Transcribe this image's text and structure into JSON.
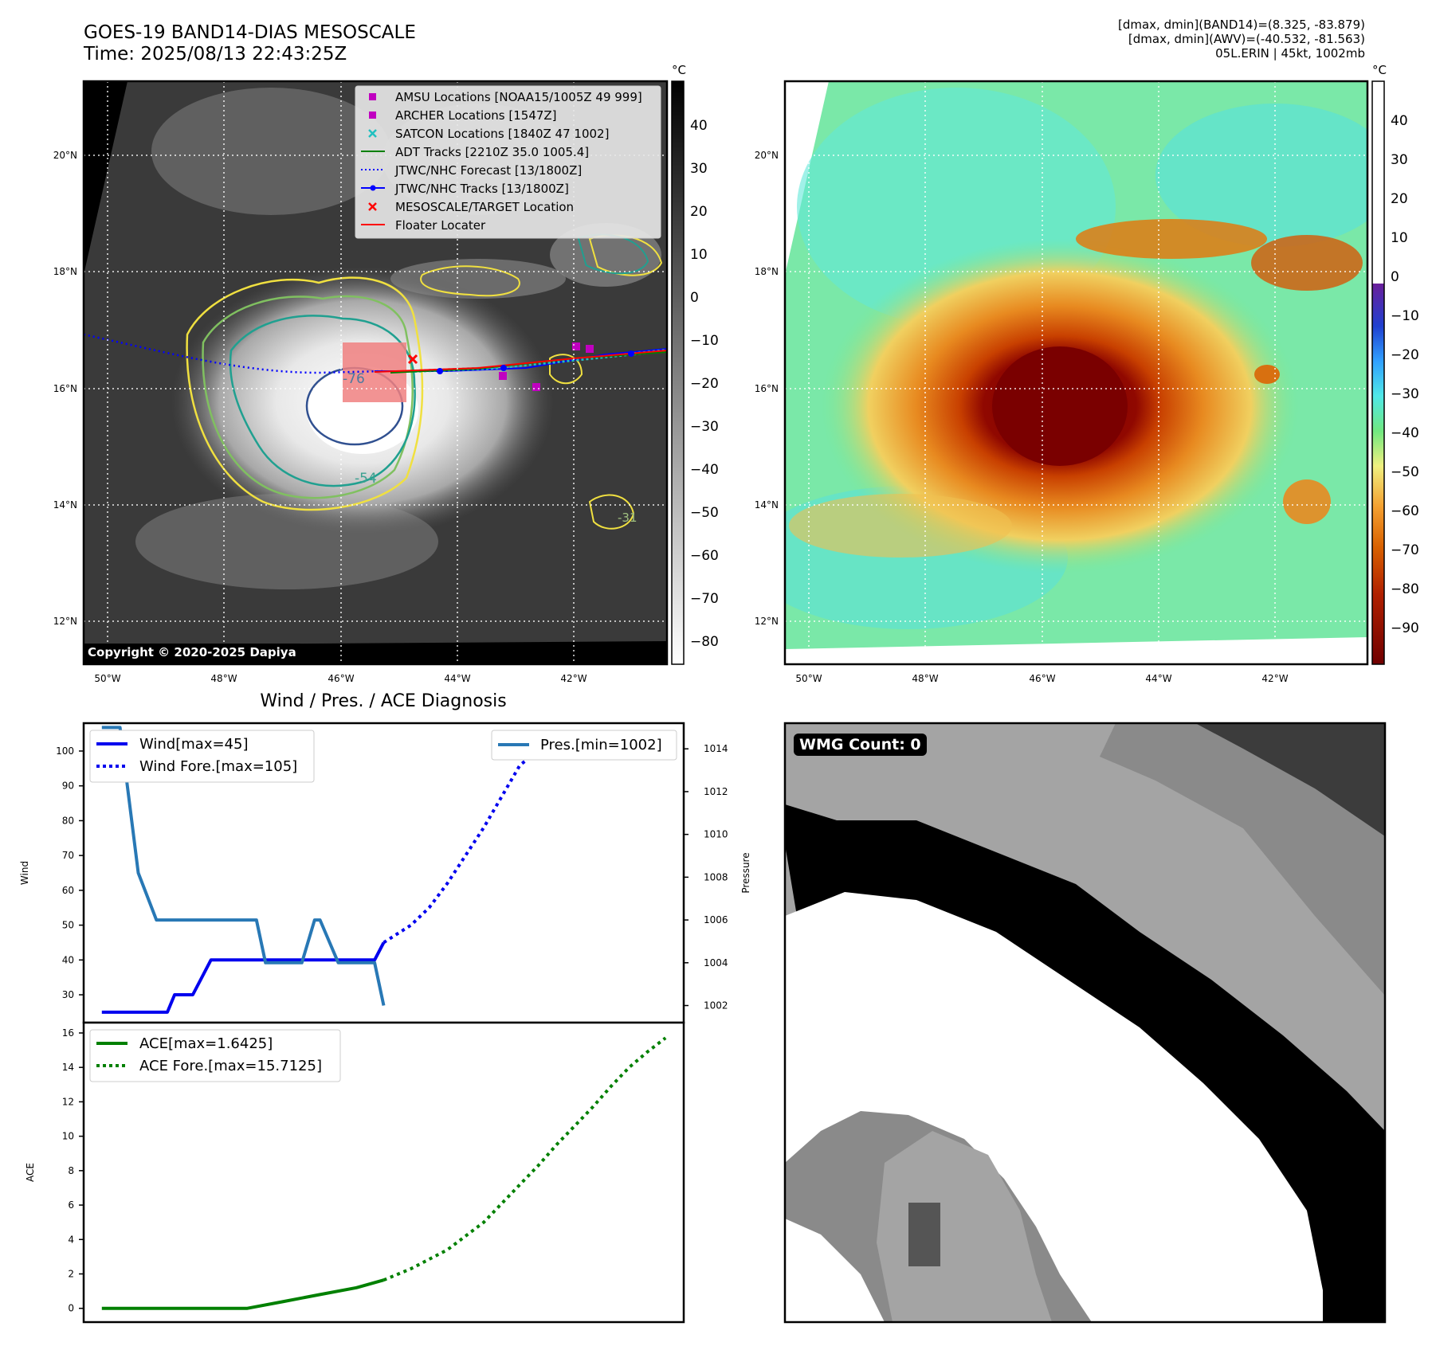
{
  "header": {
    "title_line1": "GOES-19 BAND14-DIAS MESOSCALE",
    "title_line2": "Time: 2025/08/13 22:43:25Z",
    "info_line1": "[dmax, dmin](BAND14)=(8.325, -83.879)",
    "info_line2": "[dmax, dmin](AWV)=(-40.532, -81.563)",
    "info_line3": "05L.ERIN | 45kt, 1002mb"
  },
  "map": {
    "lon_ticks": [
      "50°W",
      "48°W",
      "46°W",
      "44°W",
      "42°W"
    ],
    "lat_ticks": [
      "20°N",
      "18°N",
      "16°N",
      "14°N",
      "12°N"
    ],
    "copyright": "Copyright © 2020-2025 Dapiya",
    "contour_labels": [
      "-76",
      "-54",
      "-31"
    ],
    "colorbar_unit": "°C",
    "left_colorbar_ticks": [
      "40",
      "30",
      "20",
      "10",
      "0",
      "−10",
      "−20",
      "−30",
      "−40",
      "−50",
      "−60",
      "−70",
      "−80"
    ],
    "right_colorbar_ticks": [
      "40",
      "30",
      "20",
      "10",
      "0",
      "−10",
      "−20",
      "−30",
      "−40",
      "−50",
      "−60",
      "−70",
      "−80",
      "−90"
    ],
    "legend": [
      "AMSU Locations [NOAA15/1005Z 49 999]",
      "ARCHER Locations [1547Z]",
      "SATCON Locations [1840Z 47 1002]",
      "ADT Tracks [2210Z 35.0 1005.4]",
      "JTWC/NHC Forecast [13/1800Z]",
      "JTWC/NHC Tracks [13/1800Z]",
      "MESOSCALE/TARGET Location",
      "Floater Locater"
    ],
    "colors": {
      "amsu": "#c000c0",
      "satcon": "#20c0c0",
      "adt": "#008000",
      "jtwc": "#0000ff",
      "target": "#ff0000",
      "contour_yellow": "#f0e040",
      "contour_green": "#80c060",
      "contour_teal": "#20a090",
      "contour_blue": "#305090"
    }
  },
  "chart_data": [
    {
      "type": "line",
      "title": "Wind / Pres. / ACE Diagnosis",
      "ylabel": "Wind",
      "y2label": "Pressure",
      "ylim": [
        22,
        108
      ],
      "y2lim": [
        1001.2,
        1015.2
      ],
      "yticks": [
        30,
        40,
        50,
        60,
        70,
        80,
        90,
        100
      ],
      "y2ticks": [
        1002,
        1004,
        1006,
        1008,
        1010,
        1012,
        1014
      ],
      "series": [
        {
          "name": "Wind[max=45]",
          "color": "#0000ee",
          "style": "solid",
          "axis": "wind",
          "x": [
            0,
            1,
            2,
            3,
            3.6,
            4,
            5,
            6,
            6.5,
            7,
            8,
            9,
            10,
            11,
            12,
            13,
            14,
            15,
            15.5
          ],
          "y": [
            25,
            25,
            25,
            25,
            25,
            30,
            30,
            40,
            40,
            40,
            40,
            40,
            40,
            40,
            40,
            40,
            40,
            40,
            45
          ]
        },
        {
          "name": "Wind Fore.[max=105]",
          "color": "#0000ee",
          "style": "dotted",
          "axis": "wind",
          "x": [
            15.5,
            17,
            18,
            19,
            20,
            21,
            22,
            23,
            24,
            25,
            26,
            27,
            28,
            29,
            30,
            31
          ],
          "y": [
            45,
            50,
            55,
            62,
            70,
            78,
            87,
            96,
            100,
            100,
            100,
            102,
            104,
            105,
            105,
            105
          ]
        },
        {
          "name": "Pres.[min=1002]",
          "color": "#2878b5",
          "style": "solid",
          "axis": "pressure",
          "x": [
            0,
            0.6,
            1,
            2,
            3,
            4,
            5,
            6,
            7,
            8,
            8.5,
            9,
            10,
            11,
            11.7,
            12,
            13,
            14,
            15,
            15.5
          ],
          "y": [
            1015,
            1015,
            1015,
            1008.2,
            1006,
            1006,
            1006,
            1006,
            1006,
            1006,
            1006,
            1004,
            1004,
            1004,
            1006,
            1006,
            1004,
            1004,
            1004,
            1002
          ]
        }
      ]
    },
    {
      "type": "line",
      "ylabel": "ACE",
      "ylim": [
        -0.8,
        16.6
      ],
      "yticks": [
        0,
        2,
        4,
        6,
        8,
        10,
        12,
        14,
        16
      ],
      "series": [
        {
          "name": "ACE[max=1.6425]",
          "color": "#008000",
          "style": "solid",
          "x": [
            0,
            4,
            8,
            10,
            12,
            14,
            15.5
          ],
          "y": [
            0,
            0,
            0,
            0.4,
            0.8,
            1.2,
            1.6425
          ]
        },
        {
          "name": "ACE Fore.[max=15.7125]",
          "color": "#008000",
          "style": "dotted",
          "x": [
            15.5,
            17,
            19,
            21,
            22,
            23,
            24,
            25,
            26,
            27,
            28,
            29,
            30,
            31
          ],
          "y": [
            1.6425,
            2.3,
            3.4,
            5.0,
            6.1,
            7.2,
            8.3,
            9.5,
            10.6,
            11.7,
            12.9,
            14.0,
            14.9,
            15.7125
          ]
        }
      ]
    }
  ],
  "wmg": {
    "label": "WMG Count: 0"
  }
}
